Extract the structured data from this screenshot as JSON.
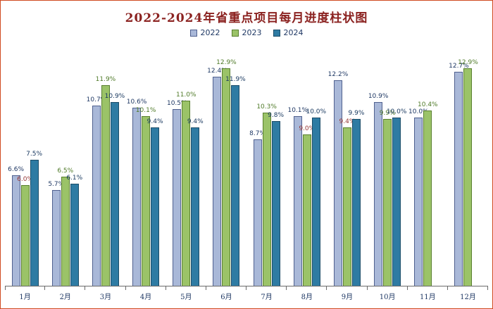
{
  "colors": {
    "canvas_border": "#cf4a21",
    "title": "#8b2220",
    "axis_line": "#6a6a6a",
    "month_label": "#1f3864",
    "background": "#ffffff"
  },
  "chart_data": {
    "type": "bar",
    "title": "2022-2024年省重点项目每月进度柱状图",
    "unit": "%",
    "xlabel": "",
    "ylabel": "",
    "ylim": [
      0,
      13.5
    ],
    "grid": false,
    "legend_position": "top",
    "pixels_per_unit": 24,
    "categories": [
      "1月",
      "2月",
      "3月",
      "4月",
      "5月",
      "6月",
      "7月",
      "8月",
      "9月",
      "10月",
      "11月",
      "12月"
    ],
    "series": [
      {
        "name": "2022",
        "fill": "#a9b8d8",
        "border": "#50618f",
        "label_color": "#1f3864",
        "values": [
          6.6,
          5.7,
          10.7,
          10.6,
          10.5,
          12.4,
          8.7,
          10.1,
          12.2,
          10.9,
          10.0,
          12.7
        ]
      },
      {
        "name": "2023",
        "fill": "#9bc368",
        "border": "#587f2e",
        "label_color": "#4f7a28",
        "label_colors": [
          "#953735",
          null,
          null,
          null,
          null,
          null,
          null,
          "#953735",
          "#953735",
          null,
          null,
          null
        ],
        "values": [
          6.0,
          6.5,
          11.9,
          10.1,
          11.0,
          12.9,
          10.3,
          9.0,
          9.4,
          9.9,
          10.4,
          12.9
        ]
      },
      {
        "name": "2024",
        "fill": "#2e7ba3",
        "border": "#1b4c68",
        "label_color": "#17375e",
        "values": [
          7.5,
          6.1,
          10.9,
          9.4,
          9.4,
          11.9,
          9.8,
          10.0,
          9.9,
          10.0,
          null,
          null
        ]
      }
    ]
  }
}
